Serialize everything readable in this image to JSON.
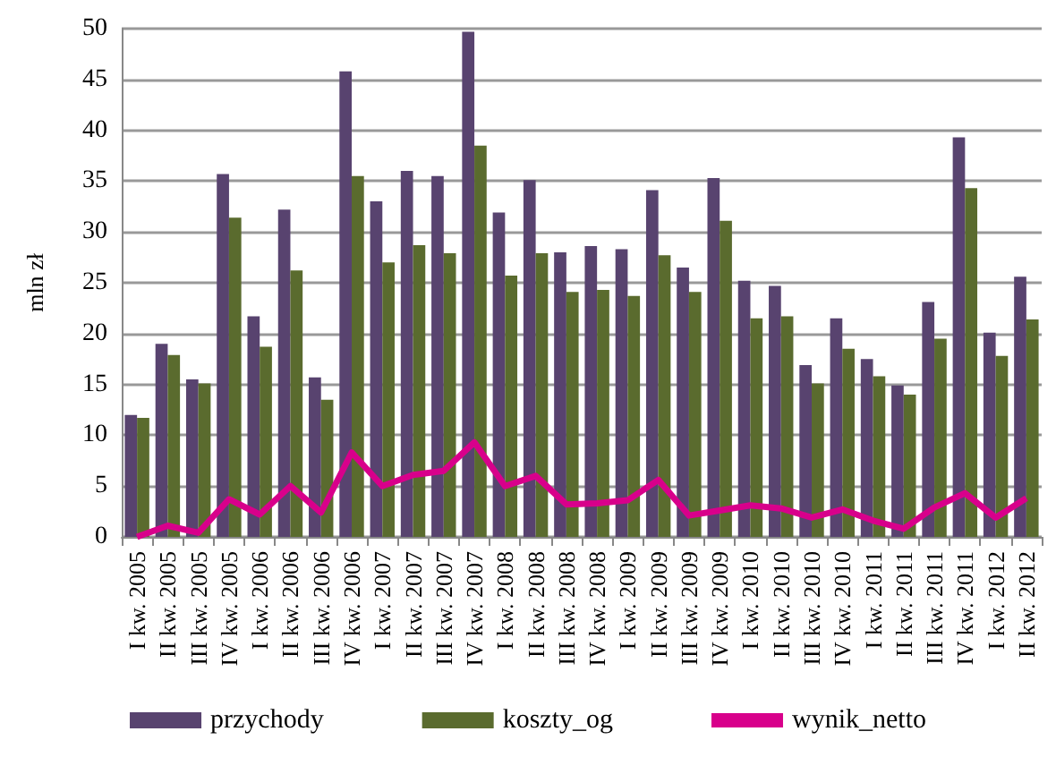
{
  "chart_data": {
    "type": "bar",
    "ylabel": "mln zł",
    "categories": [
      "I kw. 2005",
      "II kw. 2005",
      "III kw. 2005",
      "IV kw. 2005",
      "I kw. 2006",
      "II kw. 2006",
      "III kw. 2006",
      "IV kw. 2006",
      "I kw. 2007",
      "II kw. 2007",
      "III kw. 2007",
      "IV kw. 2007",
      "I kw. 2008",
      "II kw. 2008",
      "III kw. 2008",
      "IV kw. 2008",
      "I kw. 2009",
      "II kw. 2009",
      "III kw. 2009",
      "IV kw. 2009",
      "I kw. 2010",
      "II kw. 2010",
      "III kw. 2010",
      "IV kw. 2010",
      "I kw. 2011",
      "II kw. 2011",
      "III kw. 2011",
      "IV kw. 2011",
      "I kw. 2012",
      "II kw. 2012"
    ],
    "series": [
      {
        "name": "przychody",
        "color": "#58436f",
        "values": [
          12,
          19,
          15.5,
          35.7,
          21.7,
          32.2,
          15.7,
          45.8,
          33,
          36,
          35.5,
          49.7,
          31.9,
          35.1,
          28,
          28.6,
          28.3,
          34.1,
          26.5,
          35.3,
          25.2,
          24.7,
          16.9,
          21.5,
          17.5,
          14.9,
          23.1,
          39.3,
          20.1,
          25.6
        ]
      },
      {
        "name": "koszty_og",
        "color": "#5a6b2e",
        "values": [
          11.7,
          17.9,
          15.1,
          31.4,
          18.7,
          26.2,
          13.5,
          35.5,
          27,
          28.7,
          27.9,
          38.5,
          25.7,
          27.9,
          24.1,
          24.3,
          23.7,
          27.7,
          24.1,
          31.1,
          21.5,
          21.7,
          15.1,
          18.5,
          15.8,
          14,
          19.5,
          34.3,
          17.8,
          21.4
        ]
      },
      {
        "name": "wynik_netto",
        "type": "line",
        "color": "#d8008b",
        "values": [
          0,
          1.1,
          0.4,
          3.7,
          2.2,
          5,
          2.4,
          8.3,
          5,
          6.1,
          6.5,
          9.3,
          5,
          6,
          3.2,
          3.3,
          3.6,
          5.6,
          2.1,
          2.6,
          3.1,
          2.8,
          1.9,
          2.7,
          1.6,
          0.8,
          2.9,
          4.3,
          1.9,
          3.8
        ]
      }
    ],
    "ylim": [
      0,
      50
    ],
    "yticks": [
      0,
      5,
      10,
      15,
      20,
      25,
      30,
      35,
      40,
      45,
      50
    ],
    "grid": "y",
    "legend": "bottom",
    "marker": "none",
    "line_style": "solid"
  }
}
